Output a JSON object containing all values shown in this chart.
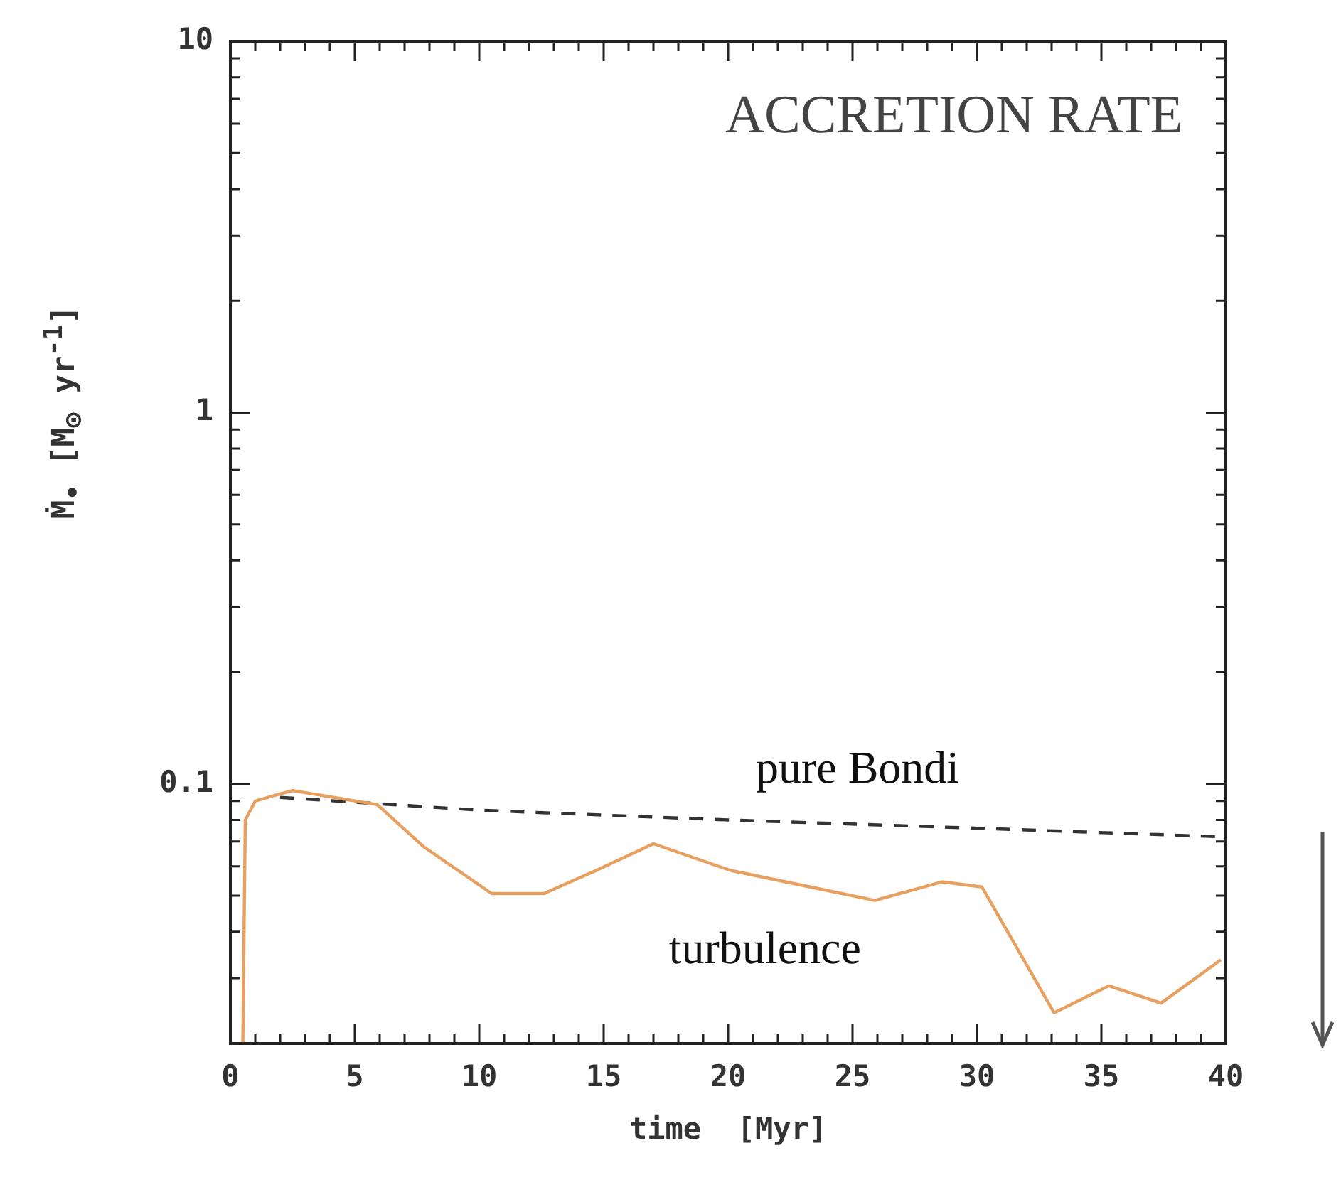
{
  "chart_data": {
    "type": "line",
    "title": "ACCRETION RATE",
    "xlabel": "time  [Myr]",
    "ylabel": "Ṁ$_{•}$ [M$_{⊙}$ yr$^{-1}$]",
    "log": "y",
    "grid": false,
    "legend": false,
    "marker": "none",
    "xlim": [
      0,
      40
    ],
    "ylim": [
      0.02,
      10
    ],
    "xticks": [
      0,
      {
        "value": 1,
        "label": null
      },
      {
        "value": 2,
        "label": null
      },
      {
        "value": 3,
        "label": null
      },
      {
        "value": 4,
        "label": null
      },
      5,
      {
        "value": 6,
        "label": null
      },
      {
        "value": 7,
        "label": null
      },
      {
        "value": 8,
        "label": null
      },
      {
        "value": 9,
        "label": null
      },
      10,
      {
        "value": 11,
        "label": null
      },
      {
        "value": 12,
        "label": null
      },
      {
        "value": 13,
        "label": null
      },
      {
        "value": 14,
        "label": null
      },
      15,
      {
        "value": 16,
        "label": null
      },
      {
        "value": 17,
        "label": null
      },
      {
        "value": 18,
        "label": null
      },
      {
        "value": 19,
        "label": null
      },
      20,
      {
        "value": 21,
        "label": null
      },
      {
        "value": 22,
        "label": null
      },
      {
        "value": 23,
        "label": null
      },
      {
        "value": 24,
        "label": null
      },
      25,
      {
        "value": 26,
        "label": null
      },
      {
        "value": 27,
        "label": null
      },
      {
        "value": 28,
        "label": null
      },
      {
        "value": 29,
        "label": null
      },
      30,
      {
        "value": 31,
        "label": null
      },
      {
        "value": 32,
        "label": null
      },
      {
        "value": 33,
        "label": null
      },
      {
        "value": 34,
        "label": null
      },
      35,
      {
        "value": 36,
        "label": null
      },
      {
        "value": 37,
        "label": null
      },
      {
        "value": 38,
        "label": null
      },
      {
        "value": 39,
        "label": null
      },
      40
    ],
    "yticks": [
      {
        "value": 0.02,
        "label": null
      },
      {
        "value": 0.03,
        "label": null
      },
      {
        "value": 0.04,
        "label": null
      },
      {
        "value": 0.05,
        "label": null
      },
      {
        "value": 0.06,
        "label": null
      },
      {
        "value": 0.07,
        "label": null
      },
      {
        "value": 0.08,
        "label": null
      },
      {
        "value": 0.09,
        "label": null
      },
      0.1,
      {
        "value": 0.2,
        "label": null
      },
      {
        "value": 0.3,
        "label": null
      },
      {
        "value": 0.4,
        "label": null
      },
      {
        "value": 0.5,
        "label": null
      },
      {
        "value": 0.6,
        "label": null
      },
      {
        "value": 0.7,
        "label": null
      },
      {
        "value": 0.8,
        "label": null
      },
      {
        "value": 0.9,
        "label": null
      },
      1,
      {
        "value": 2,
        "label": null
      },
      {
        "value": 3,
        "label": null
      },
      {
        "value": 4,
        "label": null
      },
      {
        "value": 5,
        "label": null
      },
      {
        "value": 6,
        "label": null
      },
      {
        "value": 7,
        "label": null
      },
      {
        "value": 8,
        "label": null
      },
      {
        "value": 9,
        "label": null
      },
      10
    ],
    "series": [
      {
        "color": "#e8a060",
        "line_style": "solid",
        "x": [
          0.5,
          0.6,
          1,
          2,
          2.5,
          5.9,
          7.8,
          10.5,
          12.6,
          14.7,
          17,
          20.1,
          23.3,
          25.9,
          28.6,
          30.2,
          33.1,
          35.3,
          37.4,
          39.8
        ],
        "values": [
          0.02,
          0.08,
          0.09,
          0.094,
          0.096,
          0.088,
          0.0675,
          0.0507,
          0.0507,
          0.0585,
          0.069,
          0.0585,
          0.0528,
          0.0486,
          0.0545,
          0.0528,
          0.0242,
          0.0286,
          0.0257,
          0.0336
        ]
      },
      {
        "color": "#333333",
        "line_style": "dashed",
        "x": [
          2,
          10,
          20,
          30,
          40
        ],
        "values": [
          0.092,
          0.085,
          0.08,
          0.076,
          0.072
        ]
      }
    ],
    "annotations": [
      "pure Bondi",
      "turbulence"
    ]
  }
}
